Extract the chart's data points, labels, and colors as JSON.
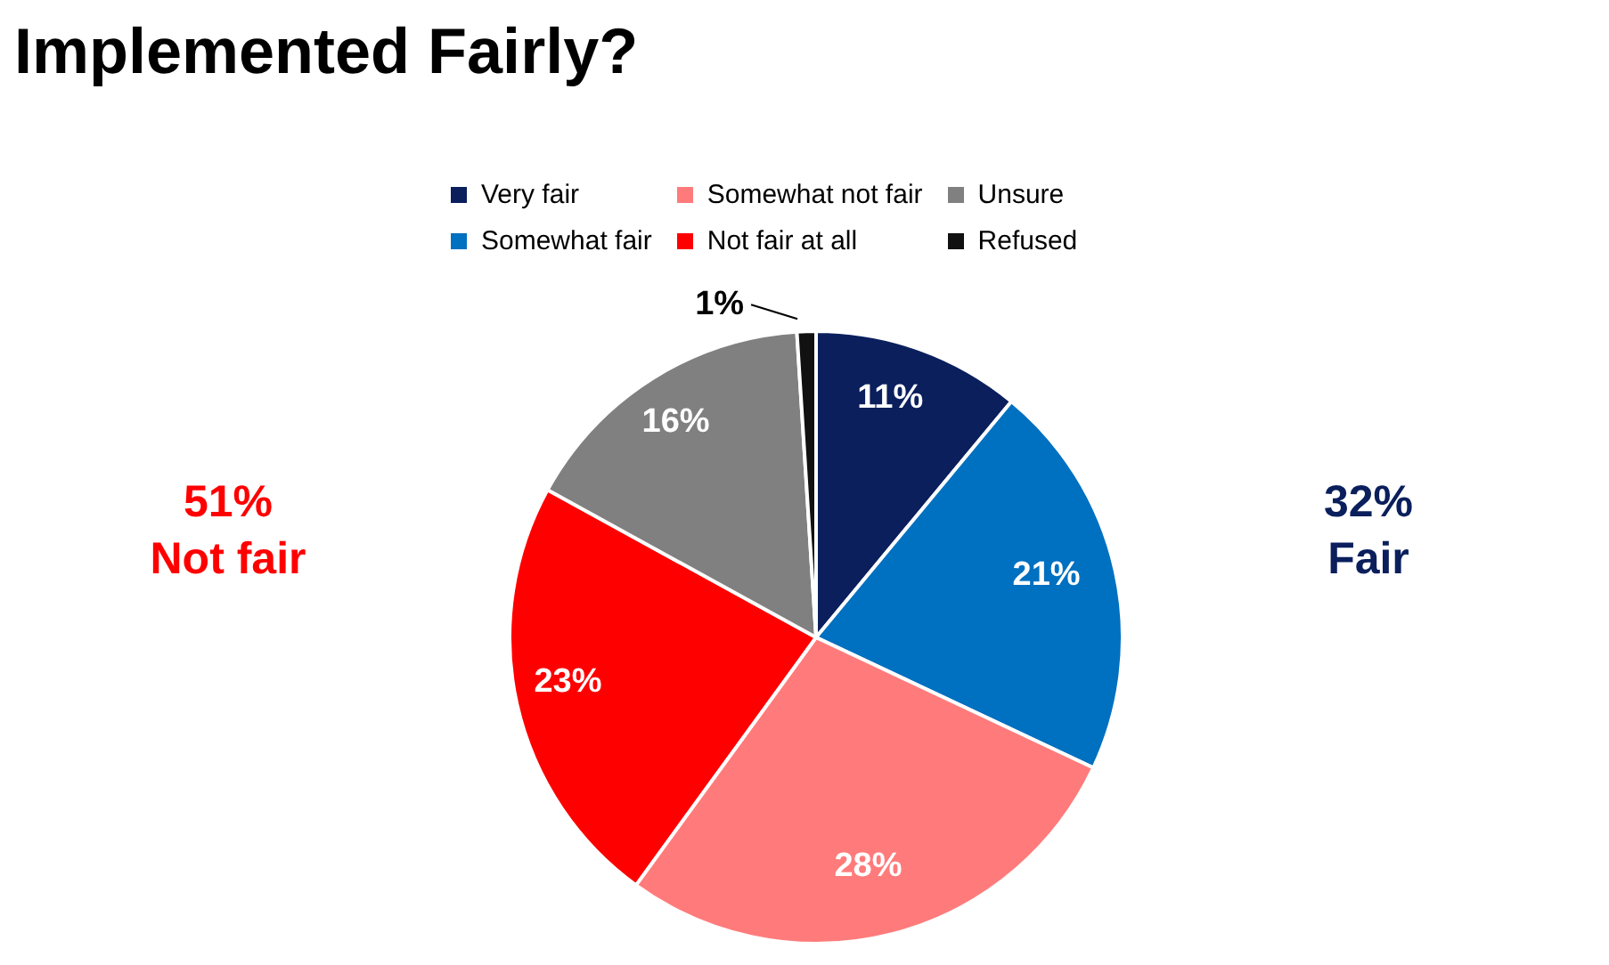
{
  "chart_data": {
    "type": "pie",
    "title": "Implemented Fairly?",
    "categories": [
      "Very fair",
      "Somewhat fair",
      "Somewhat not fair",
      "Not fair at all",
      "Unsure",
      "Refused"
    ],
    "values": [
      11,
      21,
      28,
      23,
      16,
      1
    ],
    "value_labels": [
      "11%",
      "21%",
      "28%",
      "23%",
      "16%",
      "1%"
    ],
    "colors": [
      "#0a1f5c",
      "#0070c0",
      "#ff7b7b",
      "#ff0000",
      "#808080",
      "#111111"
    ],
    "legend": "top",
    "annotations": [
      "51%\nNot fair",
      "32%\nFair"
    ]
  }
}
